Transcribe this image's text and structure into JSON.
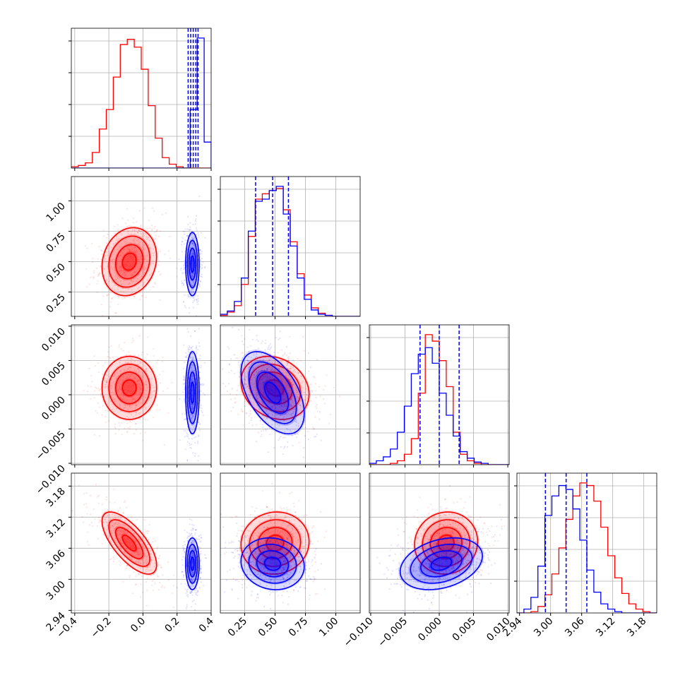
{
  "figure": {
    "colors": {
      "red": "#ff0000",
      "blue": "#0000ff",
      "grid": "#b0b0b0"
    }
  },
  "chart_data": {
    "type": "corner",
    "grid": true,
    "series": [
      {
        "name": "",
        "color": "#ff0000",
        "means": [
          -0.08,
          0.5,
          0.001,
          3.07
        ],
        "sds": [
          0.08,
          0.14,
          0.0023,
          0.03
        ],
        "corr": [
          [
            1,
            0.15,
            0.0,
            -0.7
          ],
          [
            0.15,
            1,
            -0.2,
            0.05
          ],
          [
            0.0,
            -0.2,
            1,
            0.05
          ],
          [
            -0.7,
            0.05,
            0.05,
            1
          ]
        ]
      },
      {
        "name": "",
        "color": "#0000ff",
        "means": [
          0.29,
          0.48,
          0.0003,
          3.03
        ],
        "sds": [
          0.02,
          0.13,
          0.003,
          0.025
        ],
        "corr": [
          [
            1,
            0.0,
            0.0,
            0.0
          ],
          [
            0.0,
            1,
            -0.5,
            -0.1
          ],
          [
            0.0,
            -0.5,
            1,
            0.3
          ],
          [
            0.0,
            -0.1,
            0.3,
            1
          ]
        ]
      }
    ],
    "quantile_lines": [
      [
        0.265,
        0.28,
        0.295,
        0.31,
        0.323
      ],
      [
        0.34,
        0.48,
        0.61
      ],
      [
        -0.0028,
        0.0,
        0.0029
      ],
      [
        2.99,
        3.03,
        3.07
      ]
    ],
    "axes": [
      {
        "range": [
          -0.42,
          0.4
        ],
        "ticks": [
          -0.4,
          -0.2,
          0.0,
          0.2,
          0.4
        ],
        "tick_labels": [
          "−0.4",
          "−0.2",
          "0.0",
          "0.2",
          "0.4"
        ]
      },
      {
        "range": [
          0.05,
          1.2
        ],
        "ticks": [
          0.25,
          0.5,
          0.75,
          1.0
        ],
        "tick_labels": [
          "0.25",
          "0.50",
          "0.75",
          "1.00"
        ]
      },
      {
        "range": [
          -0.0102,
          0.0102
        ],
        "ticks": [
          -0.01,
          -0.005,
          0.0,
          0.005,
          0.01
        ],
        "tick_labels": [
          "−0.010",
          "−0.005",
          "0.000",
          "0.005",
          "0.010"
        ]
      },
      {
        "range": [
          2.935,
          3.205
        ],
        "ticks": [
          2.94,
          3.0,
          3.06,
          3.12,
          3.18
        ],
        "tick_labels": [
          "2.94",
          "3.00",
          "3.06",
          "3.12",
          "3.18"
        ]
      }
    ],
    "histograms": [
      {
        "bins": 20,
        "red": [
          1,
          2,
          4,
          12,
          30,
          45,
          70,
          95,
          99,
          93,
          76,
          48,
          23,
          8,
          3,
          1,
          0,
          0,
          0,
          0
        ],
        "blue": [
          0,
          0,
          0,
          0,
          0,
          0,
          0,
          0,
          0,
          0,
          0,
          0,
          0,
          0,
          0,
          0,
          0,
          45,
          100,
          20
        ]
      },
      {
        "bins": 20,
        "red": [
          1,
          4,
          10,
          30,
          75,
          110,
          115,
          118,
          120,
          100,
          70,
          40,
          20,
          8,
          3,
          1,
          0,
          0,
          0,
          0
        ],
        "blue": [
          2,
          5,
          14,
          36,
          80,
          108,
          110,
          118,
          122,
          96,
          66,
          36,
          16,
          6,
          2,
          1,
          0,
          0,
          0,
          0
        ]
      },
      {
        "bins": 20,
        "red": [
          0,
          0,
          0,
          1,
          3,
          8,
          20,
          55,
          100,
          95,
          80,
          60,
          25,
          8,
          3,
          1,
          0,
          0,
          0,
          0
        ],
        "blue": [
          1,
          3,
          6,
          12,
          25,
          45,
          70,
          85,
          90,
          78,
          55,
          38,
          22,
          10,
          5,
          2,
          1,
          0,
          0,
          0
        ]
      },
      {
        "bins": 20,
        "red": [
          0,
          0,
          1,
          5,
          14,
          30,
          50,
          72,
          90,
          100,
          98,
          86,
          66,
          44,
          27,
          15,
          7,
          3,
          1,
          0
        ],
        "blue": [
          0,
          3,
          12,
          36,
          75,
          90,
          98,
          95,
          80,
          56,
          33,
          16,
          7,
          3,
          1,
          0,
          0,
          0,
          0,
          0
        ]
      }
    ]
  }
}
